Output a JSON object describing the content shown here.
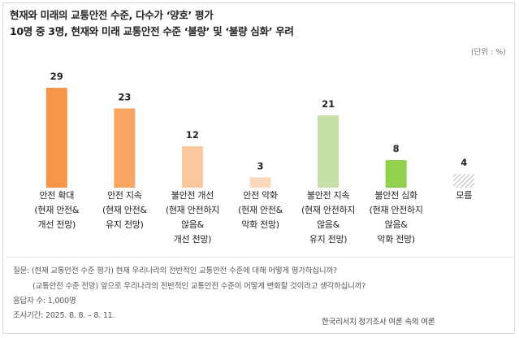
{
  "chart_data": {
    "type": "bar",
    "title": "현재와 미래의 교통안전 수준, 다수가 ‘양호’ 평가",
    "subtitle": "10명 중 3명, 현재와 미래 교통안전 수준 ‘불량’ 및 ‘불량 심화’ 우려",
    "unit": "(단위 : %)",
    "categories": [
      "안전 확대\n(현재 안전&\n개선 전망)",
      "안전 지속\n(현재 안전&\n유지 전망)",
      "불안전 개선\n(현재 안전하지\n않음&\n개선 전망)",
      "안전 악화\n(현재 안전&\n악화 전망)",
      "불안전 지속\n(현재 안전하지\n않음&\n유지 전망)",
      "불안전 심화\n(현재 안전하지\n않음&\n악화 전망)",
      "모름"
    ],
    "values": [
      29,
      23,
      12,
      3,
      21,
      8,
      4
    ],
    "colors": [
      "#f7964a",
      "#f9a562",
      "#fbc89e",
      "#fcd9bd",
      "#c6dea8",
      "#92d050",
      "#a6a6a6"
    ],
    "patterns": [
      "solid",
      "solid",
      "solid",
      "solid",
      "solid",
      "solid",
      "hatch"
    ],
    "notes": [
      "질문: (현재 교통안전 수준 평가) 현재 우리나라의 전반적인 교통안전 수준에 대해 어떻게 평가하십니까?",
      "(교통안전 수준 전망) 앞으로 우리나라의 전반적인 교통안전 수준이 어떻게 변화할 것이라고 생각하십니까?",
      "응답자 수: 1,000명",
      "조사기간: 2025. 8. 8. – 8. 11."
    ],
    "source": "한국리서치 정기조사 여론 속의 여론"
  }
}
